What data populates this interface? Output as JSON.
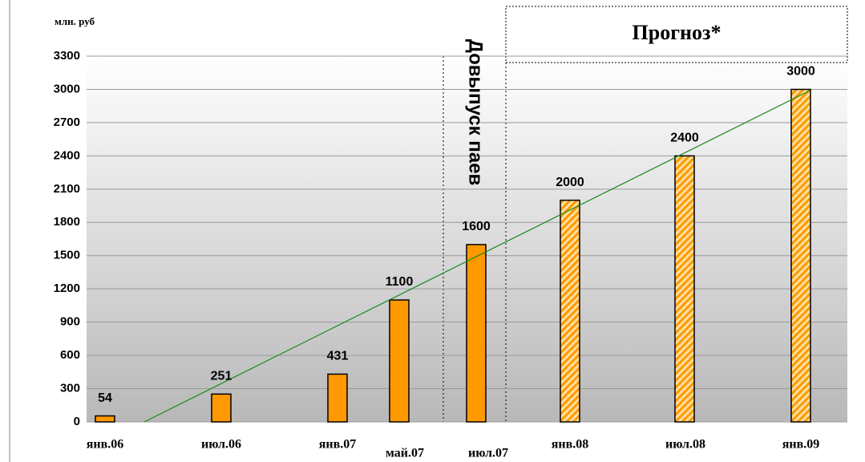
{
  "chart_data": {
    "type": "bar",
    "y_axis_label": "млн. руб",
    "annotations": [
      "Прогноз*",
      "Довыпуск паев"
    ],
    "categories": [
      "янв.06",
      "июл.06",
      "янв.07",
      "май.07",
      "июл.07",
      "янв.08",
      "июл.08",
      "янв.09"
    ],
    "values": [
      54,
      251,
      431,
      1100,
      1600,
      2000,
      2400,
      3000
    ],
    "bar_styles": [
      "solid",
      "solid",
      "solid",
      "solid",
      "solid",
      "hatched",
      "hatched",
      "hatched"
    ],
    "color": "#ff9900",
    "trendline_color": "#1a8a1a",
    "ylim": [
      0,
      3300
    ],
    "yticks": [
      0,
      300,
      600,
      900,
      1200,
      1500,
      1800,
      2100,
      2400,
      2700,
      3000,
      3300
    ],
    "grid": true
  }
}
